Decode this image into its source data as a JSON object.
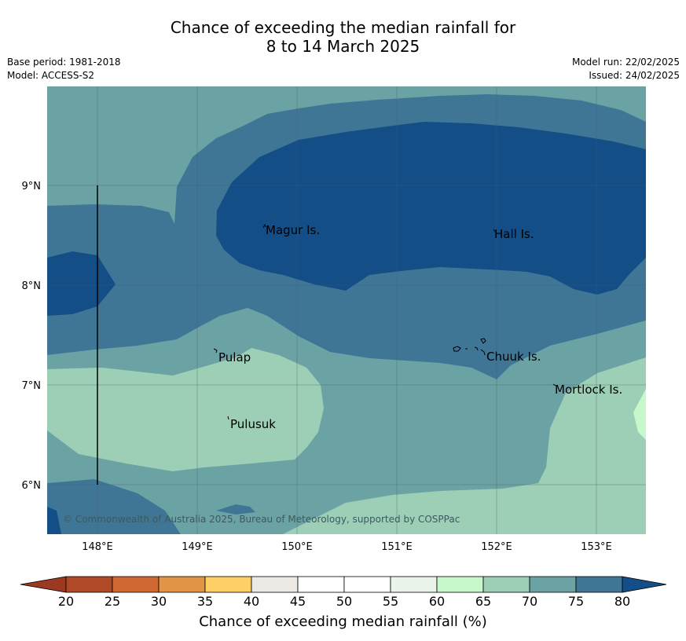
{
  "title": {
    "line1": "Chance of exceeding the median rainfall for",
    "line2": "8 to 14 March 2025"
  },
  "info_left": {
    "base_period": "Base period: 1981-2018",
    "model": "Model: ACCESS-S2"
  },
  "info_right": {
    "model_run": "Model run: 22/02/2025",
    "issued": "Issued: 24/02/2025"
  },
  "map": {
    "lat_ticks": [
      "9°N",
      "8°N",
      "7°N",
      "6°N"
    ],
    "lon_ticks": [
      "148°E",
      "149°E",
      "150°E",
      "151°E",
      "152°E",
      "153°E"
    ],
    "places": [
      "Magur Is.",
      "Hall Is.",
      "Pulap",
      "Chuuk Is.",
      "Mortlock Is.",
      "Pulusuk"
    ],
    "copyright": "© Commonwealth of Australia 2025, Bureau of Meteorology, supported by COSPPac"
  },
  "colorbar": {
    "title": "Chance of exceeding median rainfall (%)",
    "tick_labels": [
      "20",
      "25",
      "30",
      "35",
      "40",
      "45",
      "50",
      "55",
      "60",
      "65",
      "70",
      "75",
      "80"
    ],
    "colors": [
      "#b04a26",
      "#d06833",
      "#e39547",
      "#fdcf65",
      "#ede9e4",
      "#ffffff",
      "#ffffff",
      "#ebf4eb",
      "#c9f7cc",
      "#9ccfb6",
      "#6ba3a5",
      "#3f7696"
    ],
    "under_color": "#9b3a20",
    "over_color": "#134e87"
  }
}
